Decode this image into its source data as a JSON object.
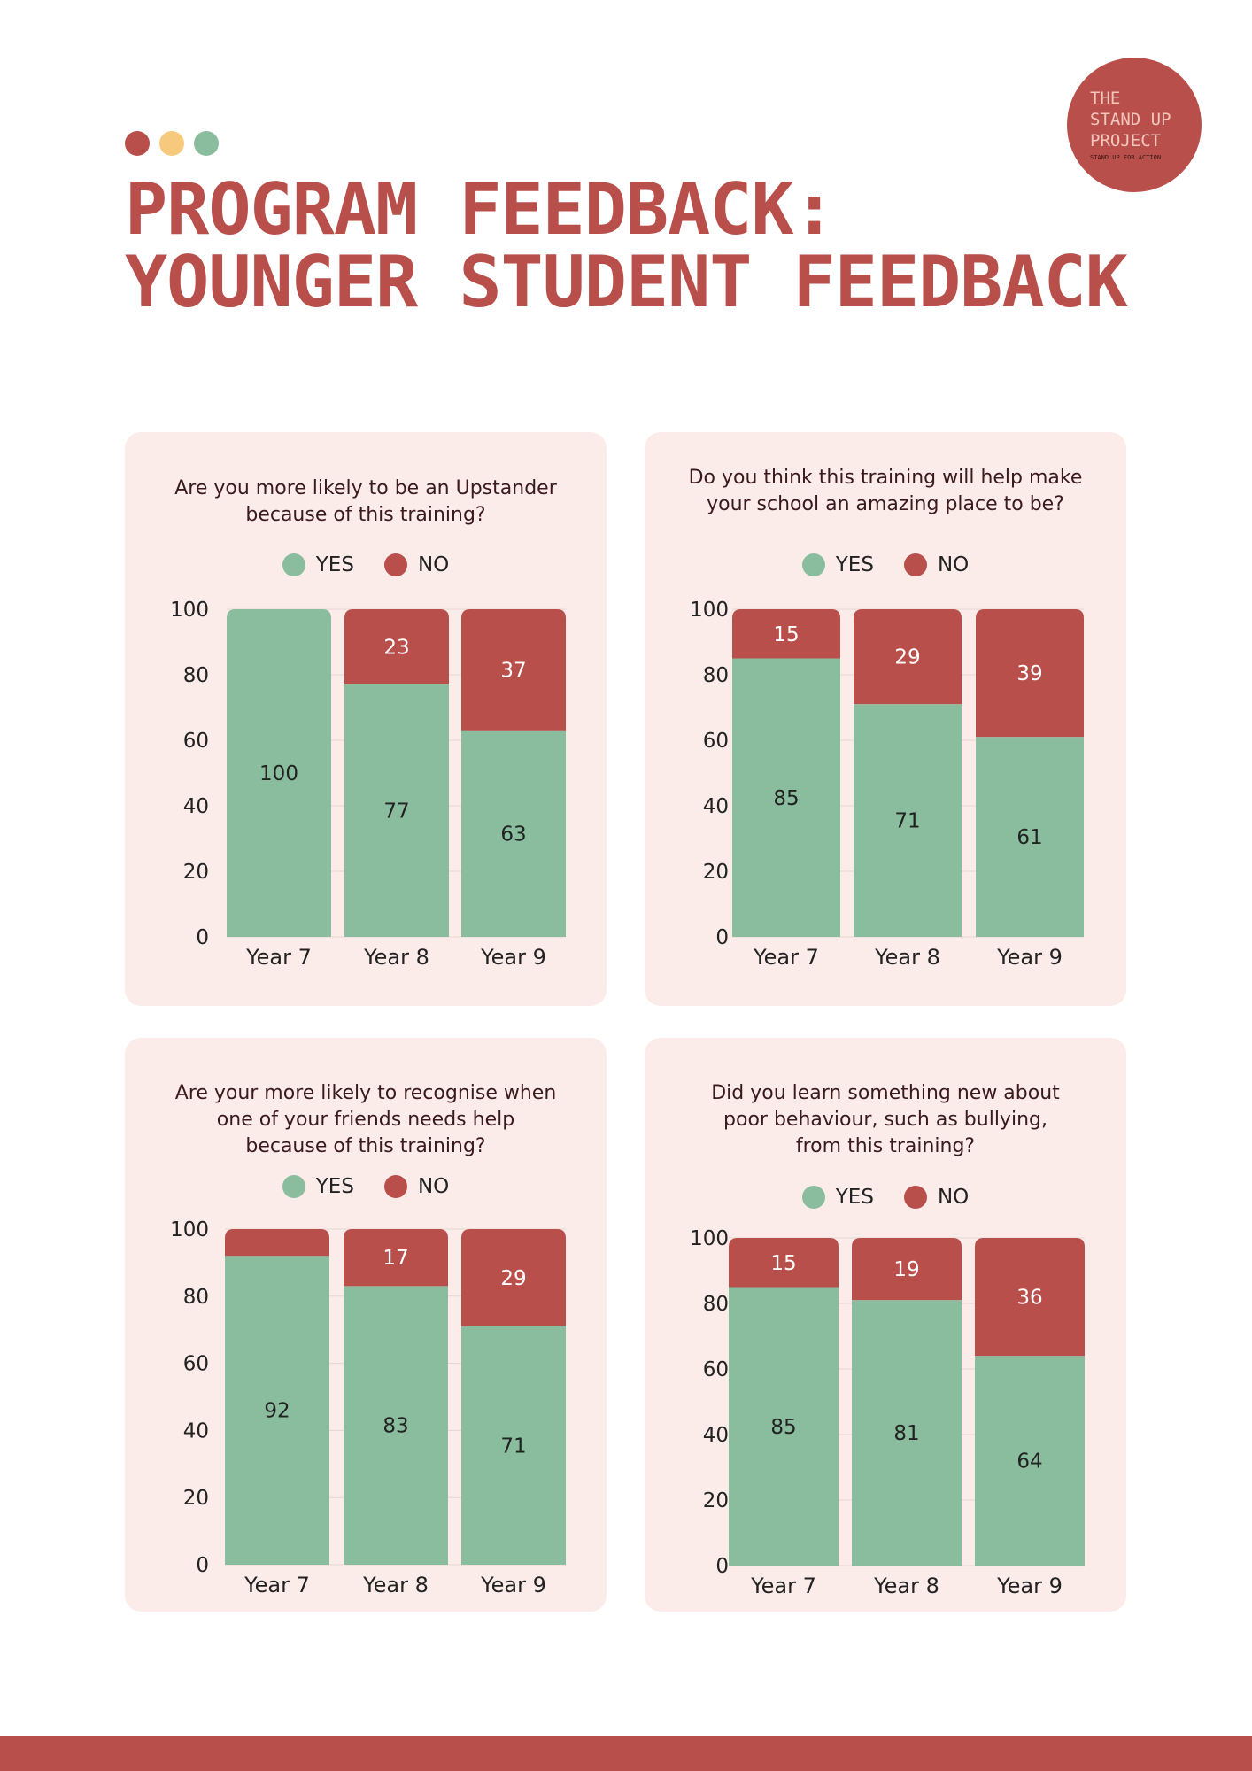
{
  "header": {
    "title_line1": "PROGRAM FEEDBACK:",
    "title_line2": "YOUNGER STUDENT FEEDBACK",
    "dot_colors": [
      "#b94f4a",
      "#f7c97c",
      "#89bd9e"
    ]
  },
  "logo": {
    "line1": "THE",
    "line2": "STAND UP",
    "line3": "PROJECT",
    "tagline": "STAND UP FOR ACTION"
  },
  "colors": {
    "accent": "#b94f4a",
    "yes": "#89bd9e",
    "no": "#b94f4a",
    "panel": "#fbecea"
  },
  "chart_data": [
    {
      "type": "bar",
      "stacked": true,
      "title": "Are you more likely to be an Upstander\nbecause of this training?",
      "categories": [
        "Year 7",
        "Year 8",
        "Year 9"
      ],
      "series": [
        {
          "name": "YES",
          "values": [
            100,
            77,
            63
          ],
          "labels": [
            "100",
            "77",
            "63"
          ]
        },
        {
          "name": "NO",
          "values": [
            0,
            23,
            37
          ],
          "labels": [
            "",
            "23",
            "37"
          ]
        }
      ],
      "ylim": [
        0,
        100
      ],
      "yticks": [
        0,
        20,
        40,
        60,
        80,
        100
      ],
      "grid": true,
      "legend": "top-center"
    },
    {
      "type": "bar",
      "stacked": true,
      "title": "Do you think this training will help make\nyour school an amazing place to be?",
      "categories": [
        "Year 7",
        "Year 8",
        "Year 9"
      ],
      "series": [
        {
          "name": "YES",
          "values": [
            85,
            71,
            61
          ],
          "labels": [
            "85",
            "71",
            "61"
          ]
        },
        {
          "name": "NO",
          "values": [
            15,
            29,
            39
          ],
          "labels": [
            "15",
            "29",
            "39"
          ]
        }
      ],
      "ylim": [
        0,
        100
      ],
      "yticks": [
        0,
        20,
        40,
        60,
        80,
        100
      ],
      "grid": true,
      "legend": "top-center"
    },
    {
      "type": "bar",
      "stacked": true,
      "title": "Are your more likely to recognise when\none of your friends needs help\nbecause of this training?",
      "categories": [
        "Year 7",
        "Year 8",
        "Year 9"
      ],
      "series": [
        {
          "name": "YES",
          "values": [
            92,
            83,
            71
          ],
          "labels": [
            "92",
            "83",
            "71"
          ]
        },
        {
          "name": "NO",
          "values": [
            8,
            17,
            29
          ],
          "labels": [
            "",
            "17",
            "29"
          ]
        }
      ],
      "ylim": [
        0,
        100
      ],
      "yticks": [
        0,
        20,
        40,
        60,
        80,
        100
      ],
      "grid": true,
      "legend": "top-center"
    },
    {
      "type": "bar",
      "stacked": true,
      "title": "Did you learn something new about\npoor behaviour, such as bullying,\nfrom this training?",
      "categories": [
        "Year 7",
        "Year 8",
        "Year 9"
      ],
      "series": [
        {
          "name": "YES",
          "values": [
            85,
            81,
            64
          ],
          "labels": [
            "85",
            "81",
            "64"
          ]
        },
        {
          "name": "NO",
          "values": [
            15,
            19,
            36
          ],
          "labels": [
            "15",
            "19",
            "36"
          ]
        }
      ],
      "ylim": [
        0,
        100
      ],
      "yticks": [
        0,
        20,
        40,
        60,
        80,
        100
      ],
      "grid": true,
      "legend": "top-center"
    }
  ]
}
